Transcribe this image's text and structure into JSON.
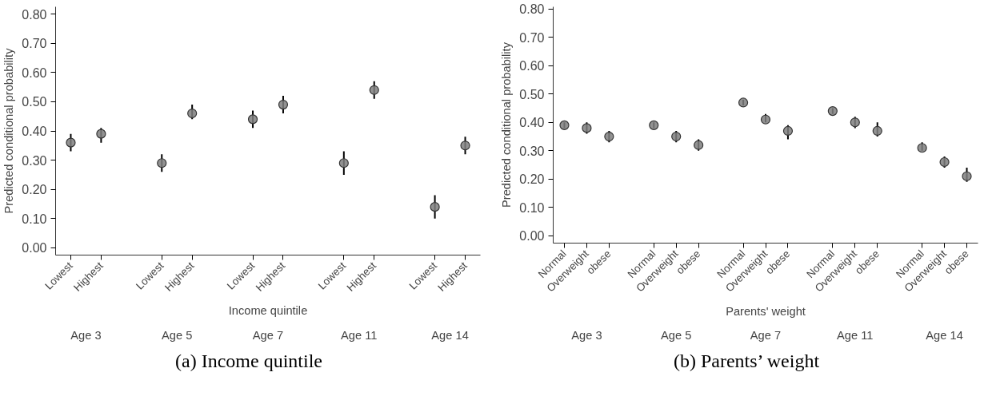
{
  "chart_data": [
    {
      "type": "scatter",
      "title": "(a) Income quintile",
      "xlabel": "Income quintile",
      "ylabel": "Predicted conditional probability",
      "categories": [
        "Lowest",
        "Highest",
        null,
        "Lowest",
        "Highest",
        null,
        "Lowest",
        "Highest",
        null,
        "Lowest",
        "Highest",
        null,
        "Lowest",
        "Highest"
      ],
      "annotations": [
        "Age 3",
        "Age 5",
        "Age 7",
        "Age 11",
        "Age 14"
      ],
      "series": [
        {
          "color": "#7f7f7f",
          "values": [
            0.36,
            0.39,
            null,
            0.29,
            0.46,
            null,
            0.44,
            0.49,
            null,
            0.29,
            0.54,
            null,
            0.14,
            0.35
          ],
          "errors": [
            [
              0.33,
              0.39
            ],
            [
              0.36,
              0.41
            ],
            null,
            [
              0.26,
              0.32
            ],
            [
              0.44,
              0.49
            ],
            null,
            [
              0.41,
              0.47
            ],
            [
              0.46,
              0.52
            ],
            null,
            [
              0.25,
              0.33
            ],
            [
              0.51,
              0.57
            ],
            null,
            [
              0.1,
              0.18
            ],
            [
              0.32,
              0.38
            ]
          ]
        }
      ],
      "ylim": [
        -0.025,
        0.825
      ],
      "yticks": [
        {
          "value": 0,
          "label": "0.00"
        },
        {
          "value": 0.1,
          "label": "0.10"
        },
        {
          "value": 0.2,
          "label": "0.20"
        },
        {
          "value": 0.3,
          "label": "0.30"
        },
        {
          "value": 0.4,
          "label": "0.40"
        },
        {
          "value": 0.5,
          "label": "0.50"
        },
        {
          "value": 0.6,
          "label": "0.60"
        },
        {
          "value": 0.7,
          "label": "0.70"
        },
        {
          "value": 0.8,
          "label": "0.80"
        }
      ],
      "marker": "circle",
      "grid": false
    },
    {
      "type": "scatter",
      "title": "(b) Parents’ weight",
      "xlabel": "Parents' weight",
      "ylabel": "Predicted conditional probability",
      "categories": [
        "Normal",
        "Overweight",
        "obese",
        null,
        "Normal",
        "Overweight",
        "obese",
        null,
        "Normal",
        "Overweight",
        "obese",
        null,
        "Normal",
        "Overweight",
        "obese",
        null,
        "Normal",
        "Overweight",
        "obese"
      ],
      "annotations": [
        "Age 3",
        "Age 5",
        "Age 7",
        "Age 11",
        "Age 14"
      ],
      "series": [
        {
          "color": "#7f7f7f",
          "values": [
            0.39,
            0.38,
            0.35,
            null,
            0.39,
            0.35,
            0.32,
            null,
            0.47,
            0.41,
            0.37,
            null,
            0.44,
            0.4,
            0.37,
            null,
            0.31,
            0.26,
            0.21
          ],
          "errors": [
            [
              0.38,
              0.4
            ],
            [
              0.36,
              0.4
            ],
            [
              0.33,
              0.37
            ],
            null,
            [
              0.38,
              0.4
            ],
            [
              0.33,
              0.37
            ],
            [
              0.3,
              0.34
            ],
            null,
            [
              0.46,
              0.48
            ],
            [
              0.4,
              0.43
            ],
            [
              0.34,
              0.39
            ],
            null,
            [
              0.43,
              0.45
            ],
            [
              0.38,
              0.42
            ],
            [
              0.35,
              0.4
            ],
            null,
            [
              0.3,
              0.33
            ],
            [
              0.24,
              0.28
            ],
            [
              0.19,
              0.24
            ]
          ]
        }
      ],
      "ylim": [
        -0.026,
        0.808
      ],
      "yticks": [
        {
          "value": 0,
          "label": "0.00"
        },
        {
          "value": 0.1,
          "label": "0.10"
        },
        {
          "value": 0.2,
          "label": "0.20"
        },
        {
          "value": 0.3,
          "label": "0.30"
        },
        {
          "value": 0.4,
          "label": "0.40"
        },
        {
          "value": 0.5,
          "label": "0.50"
        },
        {
          "value": 0.6,
          "label": "0.60"
        },
        {
          "value": 0.7,
          "label": "0.70"
        },
        {
          "value": 0.8,
          "label": "0.80"
        }
      ],
      "marker": "circle",
      "grid": false
    }
  ]
}
